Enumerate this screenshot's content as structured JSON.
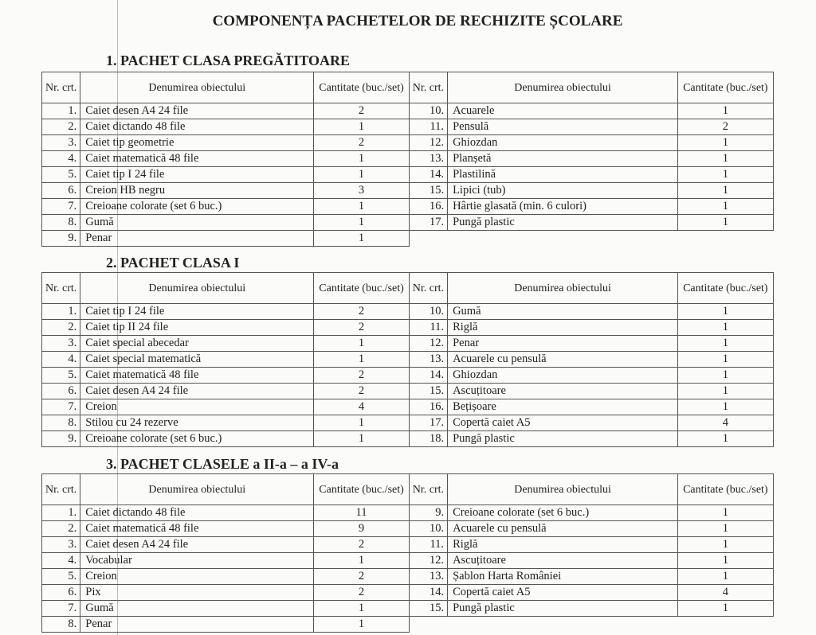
{
  "title": "COMPONENȚA PACHETELOR DE RECHIZITE ȘCOLARE",
  "headers": {
    "nr": "Nr. crt.",
    "name": "Denumirea obiectului",
    "qty": "Cantitate (buc./set)"
  },
  "sections": [
    {
      "heading": "1. PACHET CLASA PREGĂTITOARE",
      "items": [
        [
          "1.",
          "Caiet desen A4 24 file",
          "2"
        ],
        [
          "2.",
          "Caiet dictando 48 file",
          "1"
        ],
        [
          "3.",
          "Caiet tip geometrie",
          "2"
        ],
        [
          "4.",
          "Caiet matematică 48 file",
          "1"
        ],
        [
          "5.",
          "Caiet tip I 24 file",
          "1"
        ],
        [
          "6.",
          "Creion HB negru",
          "3"
        ],
        [
          "7.",
          "Creioane colorate (set 6 buc.)",
          "1"
        ],
        [
          "8.",
          "Gumă",
          "1"
        ],
        [
          "9.",
          "Penar",
          "1"
        ],
        [
          "10.",
          "Acuarele",
          "1"
        ],
        [
          "11.",
          "Pensulă",
          "2"
        ],
        [
          "12.",
          "Ghiozdan",
          "1"
        ],
        [
          "13.",
          "Planșetă",
          "1"
        ],
        [
          "14.",
          "Plastilină",
          "1"
        ],
        [
          "15.",
          "Lipici (tub)",
          "1"
        ],
        [
          "16.",
          "Hârtie glasată (min. 6 culori)",
          "1"
        ],
        [
          "17.",
          "Pungă plastic",
          "1"
        ]
      ],
      "left": 9
    },
    {
      "heading": "2. PACHET CLASA I",
      "items": [
        [
          "1.",
          "Caiet tip I 24 file",
          "2"
        ],
        [
          "2.",
          "Caiet tip II 24 file",
          "2"
        ],
        [
          "3.",
          "Caiet special abecedar",
          "1"
        ],
        [
          "4.",
          "Caiet special matematică",
          "1"
        ],
        [
          "5.",
          "Caiet matematică 48 file",
          "2"
        ],
        [
          "6.",
          "Caiet desen A4 24 file",
          "2"
        ],
        [
          "7.",
          "Creion",
          "4"
        ],
        [
          "8.",
          "Stilou cu 24 rezerve",
          "1"
        ],
        [
          "9.",
          "Creioane colorate (set 6 buc.)",
          "1"
        ],
        [
          "10.",
          "Gumă",
          "1"
        ],
        [
          "11.",
          "Riglă",
          "1"
        ],
        [
          "12.",
          "Penar",
          "1"
        ],
        [
          "13.",
          "Acuarele cu pensulă",
          "1"
        ],
        [
          "14.",
          "Ghiozdan",
          "1"
        ],
        [
          "15.",
          "Ascuțitoare",
          "1"
        ],
        [
          "16.",
          "Bețișoare",
          "1"
        ],
        [
          "17.",
          "Copertă caiet A5",
          "4"
        ],
        [
          "18.",
          "Pungă plastic",
          "1"
        ]
      ],
      "left": 9
    },
    {
      "heading": "3. PACHET CLASELE a II-a – a IV-a",
      "items": [
        [
          "1.",
          "Caiet dictando 48 file",
          "11"
        ],
        [
          "2.",
          "Caiet matematică 48 file",
          "9"
        ],
        [
          "3.",
          "Caiet desen A4 24 file",
          "2"
        ],
        [
          "4.",
          "Vocabular",
          "1"
        ],
        [
          "5.",
          "Creion",
          "2"
        ],
        [
          "6.",
          "Pix",
          "2"
        ],
        [
          "7.",
          "Gumă",
          "1"
        ],
        [
          "8.",
          "Penar",
          "1"
        ],
        [
          "9.",
          "Creioane colorate (set 6 buc.)",
          "1"
        ],
        [
          "10.",
          "Acuarele cu pensulă",
          "1"
        ],
        [
          "11.",
          "Riglă",
          "1"
        ],
        [
          "12.",
          "Ascuțitoare",
          "1"
        ],
        [
          "13.",
          "Șablon Harta României",
          "1"
        ],
        [
          "14.",
          "Copertă caiet A5",
          "4"
        ],
        [
          "15.",
          "Pungă plastic",
          "1"
        ]
      ],
      "left": 8
    }
  ]
}
